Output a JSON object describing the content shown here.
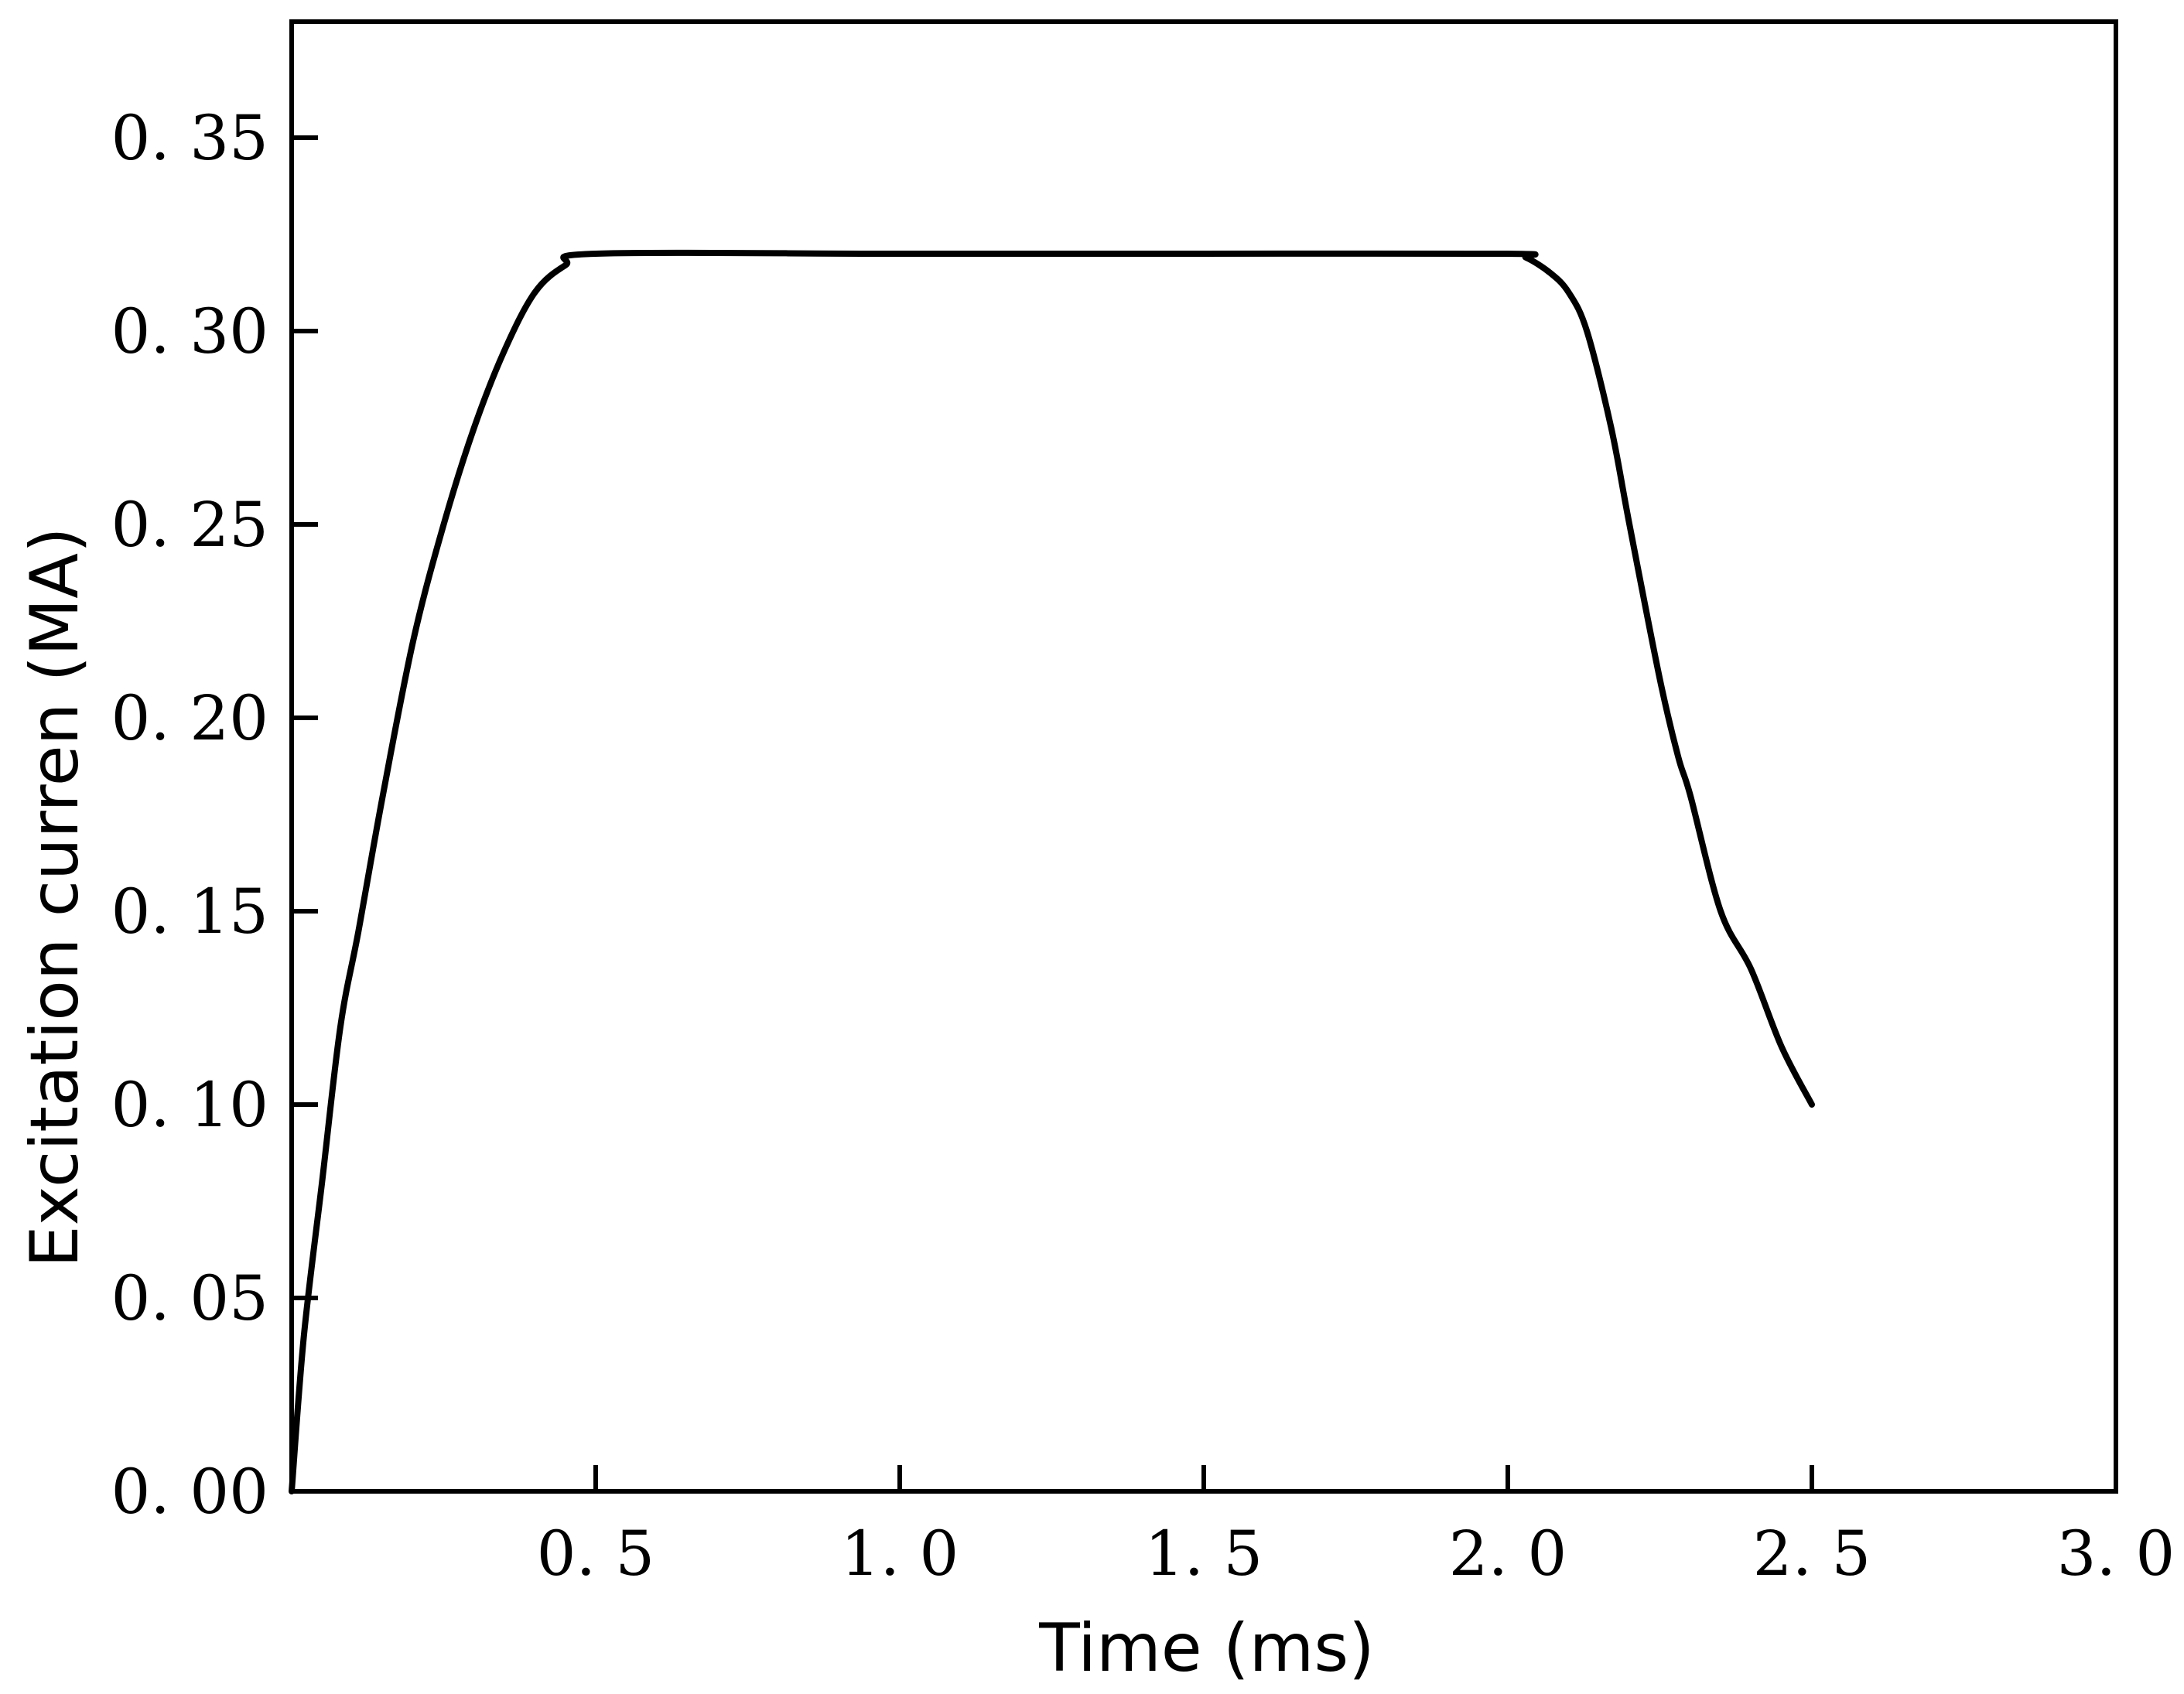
{
  "chart_data": {
    "type": "line",
    "title": "",
    "xlabel": "Time (ms)",
    "ylabel": "Excitation curren (MA)",
    "xlim": [
      0,
      3.0
    ],
    "ylim": [
      0,
      0.38
    ],
    "xticks": [
      {
        "value": 0.5,
        "label": "0. 5"
      },
      {
        "value": 1.0,
        "label": "1. 0"
      },
      {
        "value": 1.5,
        "label": "1. 5"
      },
      {
        "value": 2.0,
        "label": "2. 0"
      },
      {
        "value": 2.5,
        "label": "2. 5"
      },
      {
        "value": 3.0,
        "label": "3. 0"
      }
    ],
    "yticks": [
      {
        "value": 0.0,
        "label": "0. 00"
      },
      {
        "value": 0.05,
        "label": "0. 05"
      },
      {
        "value": 0.1,
        "label": "0. 10"
      },
      {
        "value": 0.15,
        "label": "0. 15"
      },
      {
        "value": 0.2,
        "label": "0. 20"
      },
      {
        "value": 0.25,
        "label": "0. 25"
      },
      {
        "value": 0.3,
        "label": "0. 30"
      },
      {
        "value": 0.35,
        "label": "0. 35"
      }
    ],
    "grid": false,
    "series": [
      {
        "color": "#000000",
        "x": [
          0,
          0.02,
          0.05,
          0.08,
          0.11,
          0.15,
          0.2,
          0.25,
          0.3,
          0.35,
          0.4,
          0.45,
          0.5,
          1.0,
          1.5,
          2.0,
          2.03,
          2.07,
          2.1,
          2.13,
          2.17,
          2.2,
          2.25,
          2.28,
          2.3,
          2.35,
          2.4,
          2.45,
          2.5
        ],
        "y": [
          0,
          0.04,
          0.08,
          0.12,
          0.145,
          0.18,
          0.22,
          0.25,
          0.275,
          0.295,
          0.31,
          0.317,
          0.32,
          0.32,
          0.32,
          0.32,
          0.319,
          0.315,
          0.31,
          0.3,
          0.275,
          0.25,
          0.21,
          0.19,
          0.18,
          0.15,
          0.135,
          0.115,
          0.1
        ]
      }
    ]
  }
}
